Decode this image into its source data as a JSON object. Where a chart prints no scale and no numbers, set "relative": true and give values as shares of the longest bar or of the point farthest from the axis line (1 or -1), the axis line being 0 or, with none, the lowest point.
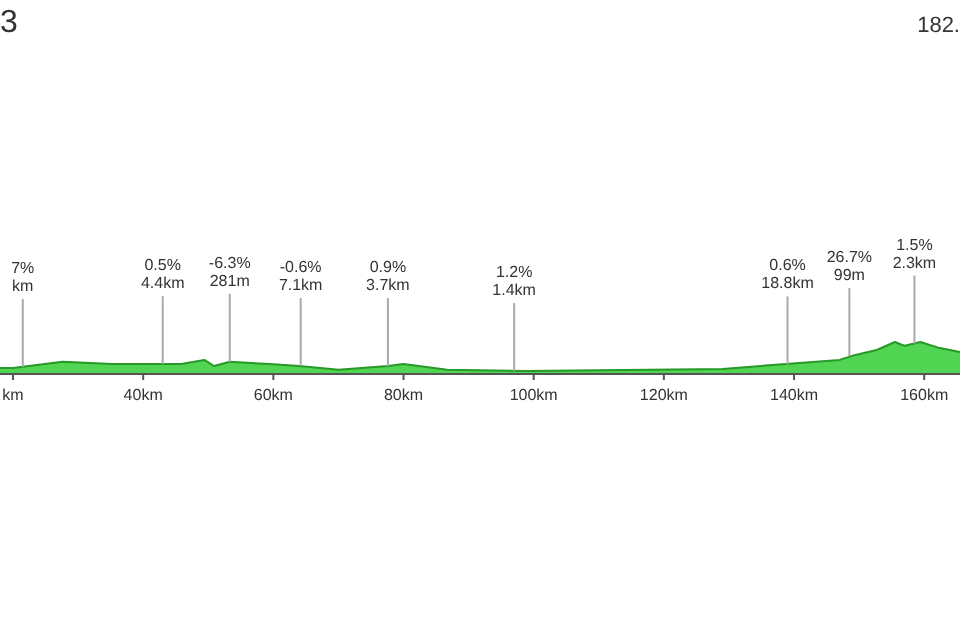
{
  "chart_data": {
    "type": "area",
    "title": "3",
    "relative": true,
    "color": "#33cc33",
    "x": [
      18,
      20,
      27.6,
      35.2,
      42.7,
      45.8,
      49.4,
      50.9,
      53.3,
      59.4,
      64,
      70,
      77.6,
      80,
      86.7,
      98.8,
      129,
      147,
      148.8,
      152.7,
      155.5,
      157,
      159.4,
      162.4,
      165.5
    ],
    "values": [
      0.19,
      0.19,
      0.38,
      0.31,
      0.31,
      0.31,
      0.44,
      0.25,
      0.38,
      0.31,
      0.25,
      0.13,
      0.25,
      0.31,
      0.13,
      0.09,
      0.16,
      0.44,
      0.56,
      0.75,
      1,
      0.88,
      1,
      0.81,
      0.69
    ],
    "xlim": [
      18,
      165.5
    ],
    "xticks": [
      {
        "value": 20,
        "label": "km"
      },
      {
        "value": 40,
        "label": "40km"
      },
      {
        "value": 60,
        "label": "60km"
      },
      {
        "value": 80,
        "label": "80km"
      },
      {
        "value": 100,
        "label": "100km"
      },
      {
        "value": 120,
        "label": "120km"
      },
      {
        "value": 140,
        "label": "140km"
      },
      {
        "value": 160,
        "label": "160km"
      }
    ],
    "annotations": [
      "182.",
      {
        "text": "7%\nkm",
        "x": 21.5,
        "y": 0.22
      },
      {
        "text": "0.5%\n4.4km",
        "x": 43,
        "y": 0.31
      },
      {
        "text": "-6.3%\n281m",
        "x": 53.3,
        "y": 0.38
      },
      {
        "text": "-0.6%\n7.1km",
        "x": 64.2,
        "y": 0.25
      },
      {
        "text": "0.9%\n3.7km",
        "x": 77.6,
        "y": 0.25
      },
      {
        "text": "1.2%\n1.4km",
        "x": 97,
        "y": 0.09
      },
      {
        "text": "0.6%\n18.8km",
        "x": 139,
        "y": 0.3
      },
      {
        "text": "26.7%\n99m",
        "x": 148.5,
        "y": 0.56
      },
      {
        "text": "1.5%\n2.3km",
        "x": 158.5,
        "y": 0.95
      }
    ]
  }
}
